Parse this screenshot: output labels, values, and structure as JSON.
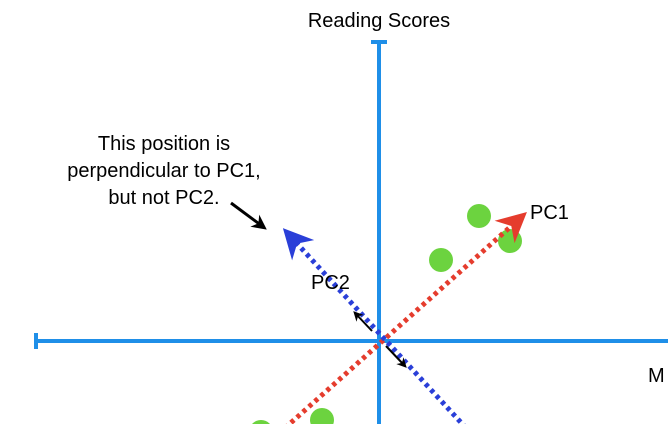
{
  "diagram": {
    "y_axis_label": "Reading Scores",
    "x_axis_label": "M",
    "pc1_label": "PC1",
    "pc2_label": "PC2",
    "annotation": {
      "line1": "This position is",
      "line2": "perpendicular to PC1,",
      "line3": "but not PC2."
    }
  },
  "colors": {
    "axis": "#1f8fe8",
    "pc1": "#e53c2d",
    "pc2": "#2a3fd8",
    "points": "#6cd33f",
    "arrow": "#000000"
  }
}
